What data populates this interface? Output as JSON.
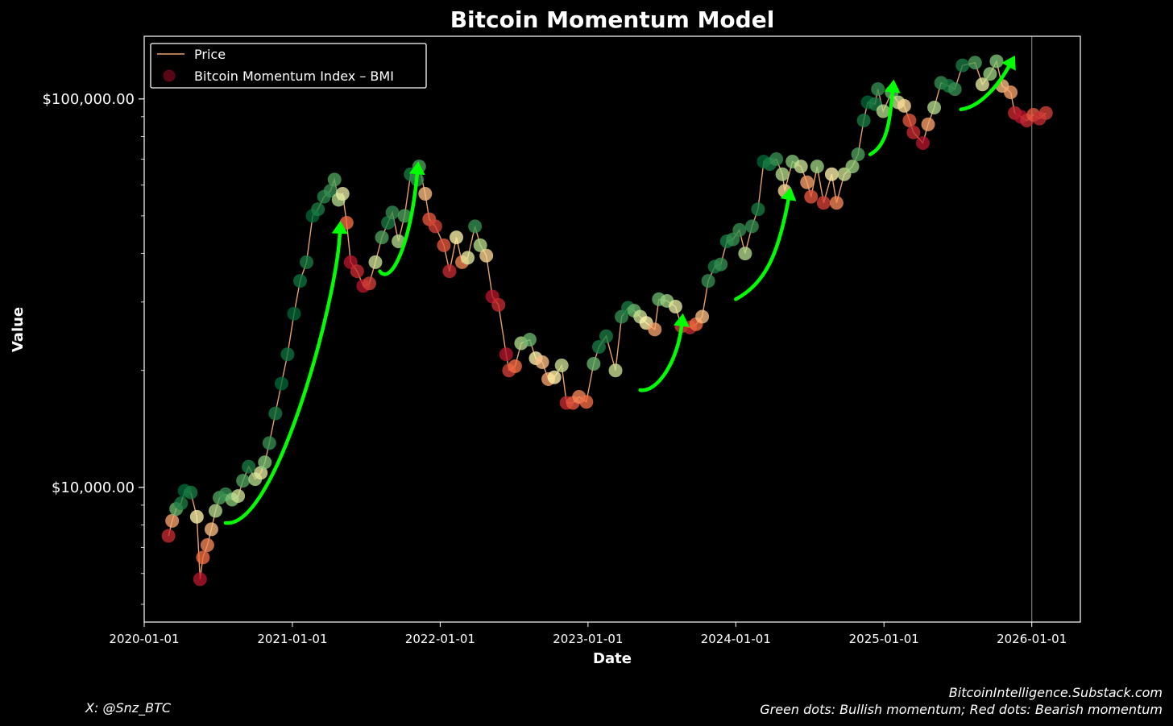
{
  "chart_data": {
    "type": "scatter",
    "title": "Bitcoin Momentum Model",
    "xlabel": "Date",
    "ylabel": "Value",
    "y_scale": "log",
    "ylim": [
      4500,
      145000
    ],
    "xlim": [
      "2020-01-01",
      "2026-05-01"
    ],
    "x_ticks": [
      "2020-01-01",
      "2021-01-01",
      "2022-01-01",
      "2023-01-01",
      "2024-01-01",
      "2025-01-01",
      "2026-01-01"
    ],
    "y_ticks": [
      {
        "value": 10000,
        "label": "$10,000.00"
      },
      {
        "value": 100000,
        "label": "$100,000.00"
      }
    ],
    "legend": {
      "placement": "top-left",
      "entries": [
        "Price",
        "Bitcoin Momentum Index – BMI"
      ]
    },
    "vertical_marker_date": "2026-01-01",
    "colors": {
      "background": "#000000",
      "price_line": "#e8a06a",
      "bullish": "#0f6b3a",
      "neutral": "#f2e6a6",
      "bearish": "#c8102e",
      "arrow": "#00ff00"
    },
    "series": [
      {
        "name": "Price",
        "points": [
          {
            "date": "2020-03-01",
            "price": 7500,
            "bmi": -0.8
          },
          {
            "date": "2020-03-10",
            "price": 8200,
            "bmi": -0.3
          },
          {
            "date": "2020-03-20",
            "price": 8800,
            "bmi": 0.6
          },
          {
            "date": "2020-04-01",
            "price": 9100,
            "bmi": 0.9
          },
          {
            "date": "2020-04-10",
            "price": 9800,
            "bmi": 1.0
          },
          {
            "date": "2020-04-25",
            "price": 9700,
            "bmi": 0.9
          },
          {
            "date": "2020-05-10",
            "price": 8400,
            "bmi": 0.0
          },
          {
            "date": "2020-05-18",
            "price": 5800,
            "bmi": -0.9
          },
          {
            "date": "2020-05-25",
            "price": 6600,
            "bmi": -0.5
          },
          {
            "date": "2020-06-05",
            "price": 7100,
            "bmi": -0.4
          },
          {
            "date": "2020-06-15",
            "price": 7800,
            "bmi": -0.2
          },
          {
            "date": "2020-06-25",
            "price": 8700,
            "bmi": 0.3
          },
          {
            "date": "2020-07-05",
            "price": 9400,
            "bmi": 0.7
          },
          {
            "date": "2020-07-20",
            "price": 9600,
            "bmi": 0.8
          },
          {
            "date": "2020-08-05",
            "price": 9300,
            "bmi": 0.5
          },
          {
            "date": "2020-08-20",
            "price": 9500,
            "bmi": 0.2
          },
          {
            "date": "2020-09-01",
            "price": 10400,
            "bmi": 0.7
          },
          {
            "date": "2020-09-15",
            "price": 11300,
            "bmi": 0.9
          },
          {
            "date": "2020-10-01",
            "price": 10500,
            "bmi": 0.3
          },
          {
            "date": "2020-10-15",
            "price": 10900,
            "bmi": 0.1
          },
          {
            "date": "2020-10-25",
            "price": 11600,
            "bmi": 0.5
          },
          {
            "date": "2020-11-05",
            "price": 13000,
            "bmi": 0.8
          },
          {
            "date": "2020-11-20",
            "price": 15500,
            "bmi": 0.9
          },
          {
            "date": "2020-12-05",
            "price": 18500,
            "bmi": 1.0
          },
          {
            "date": "2020-12-20",
            "price": 22000,
            "bmi": 0.95
          },
          {
            "date": "2021-01-05",
            "price": 28000,
            "bmi": 1.0
          },
          {
            "date": "2021-01-20",
            "price": 34000,
            "bmi": 0.95
          },
          {
            "date": "2021-02-05",
            "price": 38000,
            "bmi": 0.9
          },
          {
            "date": "2021-02-20",
            "price": 50000,
            "bmi": 1.0
          },
          {
            "date": "2021-03-05",
            "price": 52000,
            "bmi": 0.9
          },
          {
            "date": "2021-03-20",
            "price": 56000,
            "bmi": 0.85
          },
          {
            "date": "2021-04-05",
            "price": 58000,
            "bmi": 0.8
          },
          {
            "date": "2021-04-15",
            "price": 62000,
            "bmi": 0.7
          },
          {
            "date": "2021-04-25",
            "price": 55000,
            "bmi": 0.3
          },
          {
            "date": "2021-05-05",
            "price": 57000,
            "bmi": 0.1
          },
          {
            "date": "2021-05-15",
            "price": 48000,
            "bmi": -0.5
          },
          {
            "date": "2021-05-25",
            "price": 38000,
            "bmi": -0.9
          },
          {
            "date": "2021-06-10",
            "price": 36000,
            "bmi": -0.8
          },
          {
            "date": "2021-06-25",
            "price": 33000,
            "bmi": -0.9
          },
          {
            "date": "2021-07-10",
            "price": 33500,
            "bmi": -0.7
          },
          {
            "date": "2021-07-25",
            "price": 38000,
            "bmi": 0.2
          },
          {
            "date": "2021-08-10",
            "price": 44000,
            "bmi": 0.7
          },
          {
            "date": "2021-08-25",
            "price": 48000,
            "bmi": 0.9
          },
          {
            "date": "2021-09-05",
            "price": 51000,
            "bmi": 0.8
          },
          {
            "date": "2021-09-20",
            "price": 43000,
            "bmi": 0.3
          },
          {
            "date": "2021-10-05",
            "price": 50000,
            "bmi": 0.7
          },
          {
            "date": "2021-10-20",
            "price": 64000,
            "bmi": 0.9
          },
          {
            "date": "2021-11-05",
            "price": 62000,
            "bmi": 0.8
          },
          {
            "date": "2021-11-10",
            "price": 67000,
            "bmi": 0.7
          },
          {
            "date": "2021-11-25",
            "price": 57000,
            "bmi": -0.2
          },
          {
            "date": "2021-12-05",
            "price": 49000,
            "bmi": -0.6
          },
          {
            "date": "2021-12-20",
            "price": 47000,
            "bmi": -0.7
          },
          {
            "date": "2022-01-10",
            "price": 42000,
            "bmi": -0.6
          },
          {
            "date": "2022-01-24",
            "price": 36000,
            "bmi": -0.8
          },
          {
            "date": "2022-02-10",
            "price": 44000,
            "bmi": 0.0
          },
          {
            "date": "2022-02-24",
            "price": 38000,
            "bmi": -0.4
          },
          {
            "date": "2022-03-10",
            "price": 39000,
            "bmi": 0.1
          },
          {
            "date": "2022-03-28",
            "price": 47000,
            "bmi": 0.8
          },
          {
            "date": "2022-04-10",
            "price": 42000,
            "bmi": 0.3
          },
          {
            "date": "2022-04-25",
            "price": 39500,
            "bmi": -0.1
          },
          {
            "date": "2022-05-10",
            "price": 31000,
            "bmi": -0.9
          },
          {
            "date": "2022-05-25",
            "price": 29500,
            "bmi": -0.8
          },
          {
            "date": "2022-06-13",
            "price": 22000,
            "bmi": -0.9
          },
          {
            "date": "2022-06-20",
            "price": 20000,
            "bmi": -0.7
          },
          {
            "date": "2022-07-05",
            "price": 20500,
            "bmi": -0.5
          },
          {
            "date": "2022-07-20",
            "price": 23500,
            "bmi": 0.3
          },
          {
            "date": "2022-08-10",
            "price": 24000,
            "bmi": 0.6
          },
          {
            "date": "2022-08-25",
            "price": 21500,
            "bmi": 0.0
          },
          {
            "date": "2022-09-10",
            "price": 21000,
            "bmi": -0.2
          },
          {
            "date": "2022-09-25",
            "price": 19000,
            "bmi": -0.3
          },
          {
            "date": "2022-10-10",
            "price": 19200,
            "bmi": 0.0
          },
          {
            "date": "2022-10-28",
            "price": 20600,
            "bmi": 0.2
          },
          {
            "date": "2022-11-09",
            "price": 16500,
            "bmi": -0.8
          },
          {
            "date": "2022-11-25",
            "price": 16500,
            "bmi": -0.6
          },
          {
            "date": "2022-12-10",
            "price": 17100,
            "bmi": -0.4
          },
          {
            "date": "2022-12-28",
            "price": 16600,
            "bmi": -0.5
          },
          {
            "date": "2023-01-15",
            "price": 20800,
            "bmi": 0.6
          },
          {
            "date": "2023-01-28",
            "price": 23000,
            "bmi": 0.9
          },
          {
            "date": "2023-02-15",
            "price": 24500,
            "bmi": 0.9
          },
          {
            "date": "2023-03-10",
            "price": 20000,
            "bmi": 0.2
          },
          {
            "date": "2023-03-25",
            "price": 27500,
            "bmi": 0.8
          },
          {
            "date": "2023-04-10",
            "price": 29000,
            "bmi": 0.9
          },
          {
            "date": "2023-04-25",
            "price": 28500,
            "bmi": 0.6
          },
          {
            "date": "2023-05-10",
            "price": 27500,
            "bmi": 0.2
          },
          {
            "date": "2023-05-25",
            "price": 26500,
            "bmi": 0.0
          },
          {
            "date": "2023-06-15",
            "price": 25500,
            "bmi": -0.3
          },
          {
            "date": "2023-06-25",
            "price": 30500,
            "bmi": 0.6
          },
          {
            "date": "2023-07-15",
            "price": 30200,
            "bmi": 0.4
          },
          {
            "date": "2023-08-05",
            "price": 29200,
            "bmi": 0.1
          },
          {
            "date": "2023-08-20",
            "price": 26000,
            "bmi": -0.7
          },
          {
            "date": "2023-09-10",
            "price": 25800,
            "bmi": -0.8
          },
          {
            "date": "2023-09-25",
            "price": 26300,
            "bmi": -0.5
          },
          {
            "date": "2023-10-10",
            "price": 27500,
            "bmi": -0.2
          },
          {
            "date": "2023-10-25",
            "price": 34000,
            "bmi": 0.8
          },
          {
            "date": "2023-11-10",
            "price": 37000,
            "bmi": 0.9
          },
          {
            "date": "2023-11-25",
            "price": 37500,
            "bmi": 0.8
          },
          {
            "date": "2023-12-10",
            "price": 43000,
            "bmi": 0.9
          },
          {
            "date": "2023-12-25",
            "price": 43500,
            "bmi": 0.8
          },
          {
            "date": "2024-01-10",
            "price": 46000,
            "bmi": 0.8
          },
          {
            "date": "2024-01-24",
            "price": 40000,
            "bmi": 0.3
          },
          {
            "date": "2024-02-10",
            "price": 47000,
            "bmi": 0.8
          },
          {
            "date": "2024-02-25",
            "price": 52000,
            "bmi": 0.9
          },
          {
            "date": "2024-03-10",
            "price": 69000,
            "bmi": 1.0
          },
          {
            "date": "2024-03-25",
            "price": 68000,
            "bmi": 0.9
          },
          {
            "date": "2024-04-10",
            "price": 70000,
            "bmi": 0.8
          },
          {
            "date": "2024-04-25",
            "price": 64000,
            "bmi": 0.3
          },
          {
            "date": "2024-05-01",
            "price": 58000,
            "bmi": -0.1
          },
          {
            "date": "2024-05-20",
            "price": 69000,
            "bmi": 0.5
          },
          {
            "date": "2024-06-10",
            "price": 67000,
            "bmi": 0.2
          },
          {
            "date": "2024-06-25",
            "price": 61000,
            "bmi": -0.3
          },
          {
            "date": "2024-07-05",
            "price": 56000,
            "bmi": -0.6
          },
          {
            "date": "2024-07-20",
            "price": 67000,
            "bmi": 0.4
          },
          {
            "date": "2024-08-05",
            "price": 54000,
            "bmi": -0.7
          },
          {
            "date": "2024-08-25",
            "price": 64000,
            "bmi": 0.0
          },
          {
            "date": "2024-09-06",
            "price": 54000,
            "bmi": -0.4
          },
          {
            "date": "2024-09-25",
            "price": 64000,
            "bmi": 0.2
          },
          {
            "date": "2024-10-15",
            "price": 67000,
            "bmi": 0.4
          },
          {
            "date": "2024-10-29",
            "price": 72000,
            "bmi": 0.7
          },
          {
            "date": "2024-11-12",
            "price": 88000,
            "bmi": 0.9
          },
          {
            "date": "2024-11-22",
            "price": 98000,
            "bmi": 1.0
          },
          {
            "date": "2024-12-10",
            "price": 97000,
            "bmi": 0.9
          },
          {
            "date": "2024-12-17",
            "price": 106000,
            "bmi": 0.8
          },
          {
            "date": "2024-12-30",
            "price": 93000,
            "bmi": 0.3
          },
          {
            "date": "2025-01-20",
            "price": 104000,
            "bmi": 0.6
          },
          {
            "date": "2025-02-05",
            "price": 98000,
            "bmi": 0.2
          },
          {
            "date": "2025-02-20",
            "price": 96000,
            "bmi": -0.1
          },
          {
            "date": "2025-03-05",
            "price": 88000,
            "bmi": -0.6
          },
          {
            "date": "2025-03-15",
            "price": 82000,
            "bmi": -0.8
          },
          {
            "date": "2025-04-07",
            "price": 77000,
            "bmi": -0.9
          },
          {
            "date": "2025-04-20",
            "price": 86000,
            "bmi": -0.3
          },
          {
            "date": "2025-05-05",
            "price": 95000,
            "bmi": 0.3
          },
          {
            "date": "2025-05-22",
            "price": 110000,
            "bmi": 0.8
          },
          {
            "date": "2025-06-10",
            "price": 108000,
            "bmi": 0.9
          },
          {
            "date": "2025-06-25",
            "price": 106000,
            "bmi": 0.8
          },
          {
            "date": "2025-07-14",
            "price": 122000,
            "bmi": 0.9
          },
          {
            "date": "2025-08-14",
            "price": 124000,
            "bmi": 0.7
          },
          {
            "date": "2025-09-01",
            "price": 109000,
            "bmi": 0.1
          },
          {
            "date": "2025-09-20",
            "price": 116000,
            "bmi": 0.4
          },
          {
            "date": "2025-10-06",
            "price": 125000,
            "bmi": 0.5
          },
          {
            "date": "2025-10-20",
            "price": 108000,
            "bmi": -0.2
          },
          {
            "date": "2025-11-10",
            "price": 104000,
            "bmi": -0.3
          },
          {
            "date": "2025-11-20",
            "price": 92000,
            "bmi": -0.8
          },
          {
            "date": "2025-12-05",
            "price": 90000,
            "bmi": -0.9
          },
          {
            "date": "2025-12-20",
            "price": 88000,
            "bmi": -0.8
          },
          {
            "date": "2026-01-05",
            "price": 91000,
            "bmi": -0.6
          },
          {
            "date": "2026-01-20",
            "price": 89000,
            "bmi": -0.8
          },
          {
            "date": "2026-02-05",
            "price": 92000,
            "bmi": -0.7
          }
        ]
      }
    ]
  },
  "footer": {
    "left": "X: @Snz_BTC",
    "right_line1": "BitcoinIntelligence.Substack.com",
    "right_line2": "Green dots: Bullish momentum; Red dots: Bearish momentum"
  }
}
